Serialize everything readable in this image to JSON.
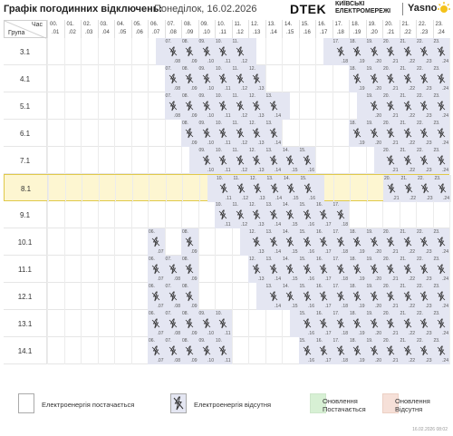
{
  "header": {
    "title": "Графік погодинних відключень:",
    "subtitle": "Понеділок, 16.02.2026",
    "brand_dtek": "DTEK",
    "brand_kyiv_line1": "КИЇВСЬКІ",
    "brand_kyiv_line2": "ЕЛЕКТРОМЕРЕЖІ",
    "brand_yasno": "Yasno"
  },
  "table": {
    "corner_hour_label": "Час",
    "corner_group_label": "Група",
    "hours": [
      {
        "a": "00.",
        "b": ".01"
      },
      {
        "a": "01.",
        "b": ".02"
      },
      {
        "a": "02.",
        "b": ".03"
      },
      {
        "a": "03.",
        "b": ".04"
      },
      {
        "a": "04.",
        "b": ".05"
      },
      {
        "a": "05.",
        "b": ".06"
      },
      {
        "a": "06.",
        "b": ".07"
      },
      {
        "a": "07.",
        "b": ".08"
      },
      {
        "a": "08.",
        "b": ".09"
      },
      {
        "a": "09.",
        "b": ".10"
      },
      {
        "a": "10.",
        "b": ".11"
      },
      {
        "a": "11.",
        "b": ".12"
      },
      {
        "a": "12.",
        "b": ".13"
      },
      {
        "a": "13.",
        "b": ".14"
      },
      {
        "a": "14.",
        "b": ".15"
      },
      {
        "a": "15.",
        "b": ".16"
      },
      {
        "a": "16.",
        "b": ".17"
      },
      {
        "a": "17.",
        "b": ".18"
      },
      {
        "a": "18.",
        "b": ".19"
      },
      {
        "a": "19.",
        "b": ".20"
      },
      {
        "a": "20.",
        "b": ".21"
      },
      {
        "a": "21.",
        "b": ".22"
      },
      {
        "a": "22.",
        "b": ".23"
      },
      {
        "a": "23.",
        "b": ".24"
      }
    ],
    "highlighted_group": "8.1",
    "groups": [
      {
        "name": "3.1",
        "outages": [
          [
            6.5,
            12.5
          ],
          [
            16.5,
            24
          ]
        ],
        "updated": "off"
      },
      {
        "name": "4.1",
        "outages": [
          [
            7,
            13
          ],
          [
            18,
            24
          ]
        ],
        "updated": "none"
      },
      {
        "name": "5.1",
        "outages": [
          [
            7,
            14.5
          ],
          [
            18.5,
            24
          ]
        ],
        "updated": "off"
      },
      {
        "name": "6.1",
        "outages": [
          [
            8,
            14
          ],
          [
            18,
            24
          ]
        ],
        "updated": "on"
      },
      {
        "name": "7.1",
        "outages": [
          [
            8.5,
            16
          ],
          [
            19.5,
            24
          ]
        ],
        "updated": "on"
      },
      {
        "name": "8.1",
        "outages": [
          [
            9.5,
            16.5
          ],
          [
            20,
            24
          ]
        ],
        "updated": "on"
      },
      {
        "name": "9.1",
        "outages": [
          [
            10,
            18
          ]
        ],
        "updated": "on"
      },
      {
        "name": "10.1",
        "outages": [
          [
            6,
            7
          ],
          [
            8,
            9
          ],
          [
            11.5,
            24
          ]
        ],
        "updated": "on"
      },
      {
        "name": "11.1",
        "outages": [
          [
            6,
            9
          ],
          [
            12,
            24
          ]
        ],
        "updated": "on"
      },
      {
        "name": "12.1",
        "outages": [
          [
            6,
            9
          ],
          [
            12.5,
            24
          ]
        ],
        "updated": "on"
      },
      {
        "name": "13.1",
        "outages": [
          [
            6,
            11
          ],
          [
            14.5,
            24
          ]
        ],
        "updated": "off"
      },
      {
        "name": "14.1",
        "outages": [
          [
            6,
            11
          ],
          [
            15,
            24
          ]
        ],
        "updated": "on"
      }
    ]
  },
  "legend": {
    "power_on": "Електроенергія постачається",
    "power_off": "Електроенергія відсутня",
    "update_on_line1": "Оновлення",
    "update_on_line2": "Постачається",
    "update_off_line1": "Оновлення",
    "update_off_line2": "Відсутня"
  },
  "footer": {
    "timestamp": "16.02.2026   08:02"
  },
  "colors": {
    "outage": "#e4e6f2",
    "update_on": "#d7f0d4",
    "update_off": "#f6e0d8",
    "highlight": "#fdf6d1",
    "highlight_border": "#e0c94a"
  }
}
